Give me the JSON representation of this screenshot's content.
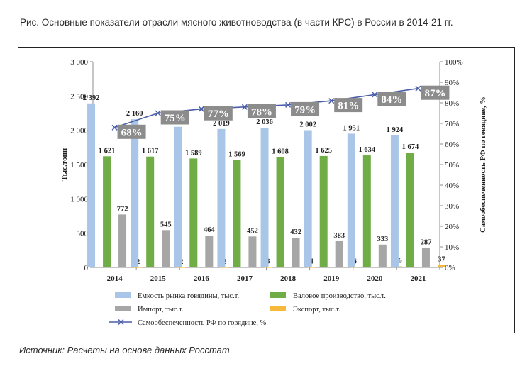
{
  "figure": {
    "title": "Рис. Основные показатели отрасли мясного животноводства (в части КРС) в России в 2014-21 гг.",
    "source": "Источник: Расчеты на основе данных Росстат"
  },
  "chart_data": {
    "type": "bar",
    "categories": [
      "2014",
      "2015",
      "2016",
      "2017",
      "2018",
      "2019",
      "2020",
      "2021"
    ],
    "series": [
      {
        "name": "Емкость рынка говядины, тыс.т.",
        "type": "bar",
        "axis": "left",
        "color": "#a9c6e8",
        "values": [
          2392,
          2160,
          2051,
          2019,
          2036,
          2002,
          1951,
          1924
        ],
        "labels": [
          "2 392",
          "2 160",
          "2 051",
          "2 019",
          "2 036",
          "2 002",
          "1 951",
          "1 924"
        ]
      },
      {
        "name": "Валовое производство, тыс.т.",
        "type": "bar",
        "axis": "left",
        "color": "#70ad47",
        "values": [
          1621,
          1617,
          1589,
          1569,
          1608,
          1625,
          1634,
          1674
        ],
        "labels": [
          "1 621",
          "1 617",
          "1 589",
          "1 569",
          "1 608",
          "1 625",
          "1 634",
          "1 674"
        ]
      },
      {
        "name": "Импорт, тыс.т.",
        "type": "bar",
        "axis": "left",
        "color": "#a6a6a6",
        "values": [
          772,
          545,
          464,
          452,
          432,
          383,
          333,
          287
        ],
        "labels": [
          "772",
          "545",
          "464",
          "452",
          "432",
          "383",
          "333",
          "287"
        ]
      },
      {
        "name": "Экспорт, тыс.т.",
        "type": "bar",
        "axis": "left",
        "color": "#f6b93b",
        "values": [
          2,
          2,
          2,
          3,
          4,
          6,
          16,
          37
        ],
        "labels": [
          "2",
          "2",
          "2",
          "3",
          "4",
          "6",
          "16",
          "37"
        ]
      },
      {
        "name": "Самообеспеченность РФ по говядине, %",
        "type": "line",
        "axis": "right",
        "color": "#4a5fa8",
        "marker": "x",
        "values": [
          68,
          75,
          77,
          78,
          79,
          81,
          84,
          87
        ],
        "labels": [
          "68%",
          "75%",
          "77%",
          "78%",
          "79%",
          "81%",
          "84%",
          "87%"
        ]
      }
    ],
    "y_left": {
      "label": "Тыс.тонн",
      "ylim": [
        0,
        3000
      ],
      "ticks": [
        0,
        500,
        1000,
        1500,
        2000,
        2500,
        3000
      ],
      "tick_labels": [
        "0",
        "500",
        "1 000",
        "1 500",
        "2 000",
        "2 500",
        "3 000"
      ]
    },
    "y_right": {
      "label": "Самообеспеченность РФ по говядине, %",
      "ylim": [
        0,
        100
      ],
      "ticks": [
        0,
        10,
        20,
        30,
        40,
        50,
        60,
        70,
        80,
        90,
        100
      ],
      "tick_labels": [
        "0%",
        "10%",
        "20%",
        "30%",
        "40%",
        "50%",
        "60%",
        "70%",
        "80%",
        "90%",
        "100%"
      ]
    },
    "grid": false,
    "legend_position": "bottom",
    "line_label_box_color": "#8c8c8c",
    "line_label_text_color": "#ffffff"
  }
}
